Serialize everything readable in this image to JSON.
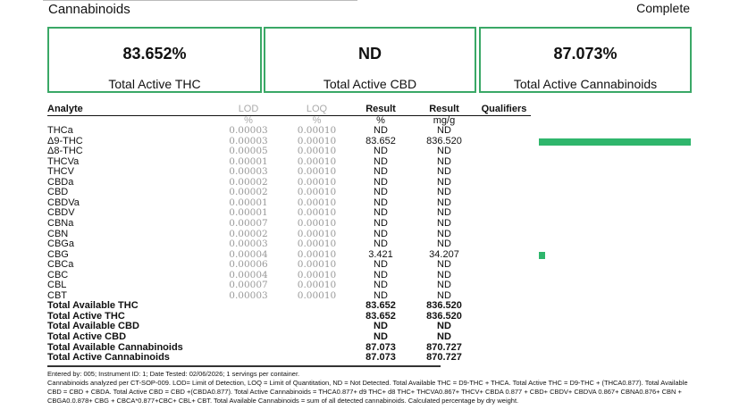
{
  "header": {
    "title": "Cannabinoids",
    "status": "Complete"
  },
  "summary": [
    {
      "value": "83.652%",
      "label": "Total Active THC"
    },
    {
      "value": "ND",
      "label": "Total Active CBD"
    },
    {
      "value": "87.073%",
      "label": "Total Active Cannabinoids"
    }
  ],
  "table": {
    "headers": {
      "analyte": "Analyte",
      "lod": "LOD",
      "loq": "LOQ",
      "result_pct": "Result",
      "result_mg": "Result",
      "qualifiers": "Qualifiers"
    },
    "units": {
      "lod": "%",
      "loq": "%",
      "result_pct": "%",
      "result_mg": "mg/g"
    },
    "rows": [
      {
        "analyte": "THCa",
        "lod": "0.00003",
        "loq": "0.00010",
        "pct": "ND",
        "mg": "ND"
      },
      {
        "analyte": "Δ9-THC",
        "lod": "0.00003",
        "loq": "0.00010",
        "pct": "83.652",
        "mg": "836.520"
      },
      {
        "analyte": "Δ8-THC",
        "lod": "0.00005",
        "loq": "0.00010",
        "pct": "ND",
        "mg": "ND"
      },
      {
        "analyte": "THCVa",
        "lod": "0.00001",
        "loq": "0.00010",
        "pct": "ND",
        "mg": "ND"
      },
      {
        "analyte": "THCV",
        "lod": "0.00003",
        "loq": "0.00010",
        "pct": "ND",
        "mg": "ND"
      },
      {
        "analyte": "CBDa",
        "lod": "0.00002",
        "loq": "0.00010",
        "pct": "ND",
        "mg": "ND"
      },
      {
        "analyte": "CBD",
        "lod": "0.00002",
        "loq": "0.00010",
        "pct": "ND",
        "mg": "ND"
      },
      {
        "analyte": "CBDVa",
        "lod": "0.00001",
        "loq": "0.00010",
        "pct": "ND",
        "mg": "ND"
      },
      {
        "analyte": "CBDV",
        "lod": "0.00001",
        "loq": "0.00010",
        "pct": "ND",
        "mg": "ND"
      },
      {
        "analyte": "CBNa",
        "lod": "0.00007",
        "loq": "0.00010",
        "pct": "ND",
        "mg": "ND"
      },
      {
        "analyte": "CBN",
        "lod": "0.00002",
        "loq": "0.00010",
        "pct": "ND",
        "mg": "ND"
      },
      {
        "analyte": "CBGa",
        "lod": "0.00003",
        "loq": "0.00010",
        "pct": "ND",
        "mg": "ND"
      },
      {
        "analyte": "CBG",
        "lod": "0.00004",
        "loq": "0.00010",
        "pct": "3.421",
        "mg": "34.207"
      },
      {
        "analyte": "CBCa",
        "lod": "0.00006",
        "loq": "0.00010",
        "pct": "ND",
        "mg": "ND"
      },
      {
        "analyte": "CBC",
        "lod": "0.00004",
        "loq": "0.00010",
        "pct": "ND",
        "mg": "ND"
      },
      {
        "analyte": "CBL",
        "lod": "0.00007",
        "loq": "0.00010",
        "pct": "ND",
        "mg": "ND"
      },
      {
        "analyte": "CBT",
        "lod": "0.00003",
        "loq": "0.00010",
        "pct": "ND",
        "mg": "ND"
      }
    ],
    "totals": [
      {
        "analyte": "Total Available THC",
        "pct": "83.652",
        "mg": "836.520"
      },
      {
        "analyte": "Total Active THC",
        "pct": "83.652",
        "mg": "836.520"
      },
      {
        "analyte": "Total Available CBD",
        "pct": "ND",
        "mg": "ND"
      },
      {
        "analyte": "Total Active CBD",
        "pct": "ND",
        "mg": "ND"
      },
      {
        "analyte": "Total Available Cannabinoids",
        "pct": "87.073",
        "mg": "870.727"
      },
      {
        "analyte": "Total Active Cannabinoids",
        "pct": "87.073",
        "mg": "870.727"
      }
    ]
  },
  "bars": {
    "color": "#2fb66c",
    "max_pct": 83.652,
    "items": [
      {
        "row": 1,
        "pct": 83.652
      },
      {
        "row": 12,
        "pct": 3.421
      }
    ]
  },
  "notes": {
    "line1": "Entered by: 005; Instrument ID: 1; Date Tested: 02/06/2026; 1 servings per container.",
    "line2": "Cannabinoids analyzed per CT-SOP-009. LOD= Limit of Detection, LOQ = Limit of Quantitation, ND = Not Detected. Total Available THC = D9-THC + THCA. Total Active THC = D9-THC + (THCA0.877). Total Available CBD = CBD + CBDA. Total Active CBD = CBD +(CBDA0.877). Total Active Cannabinoids = THCA0.877+ d9 THC+ d8 THC+ THCVA0.867+ THCV+ CBDA 0.877 + CBD+ CBDV+ CBDVA 0.867+ CBNA0.876+ CBN + CBGA0.0.878+ CBG + CBCA*0.877+CBC+ CBL+ CBT. Total Available Cannabinoids = sum of all detected cannabinoids. Calculated percentage by dry weight."
  }
}
